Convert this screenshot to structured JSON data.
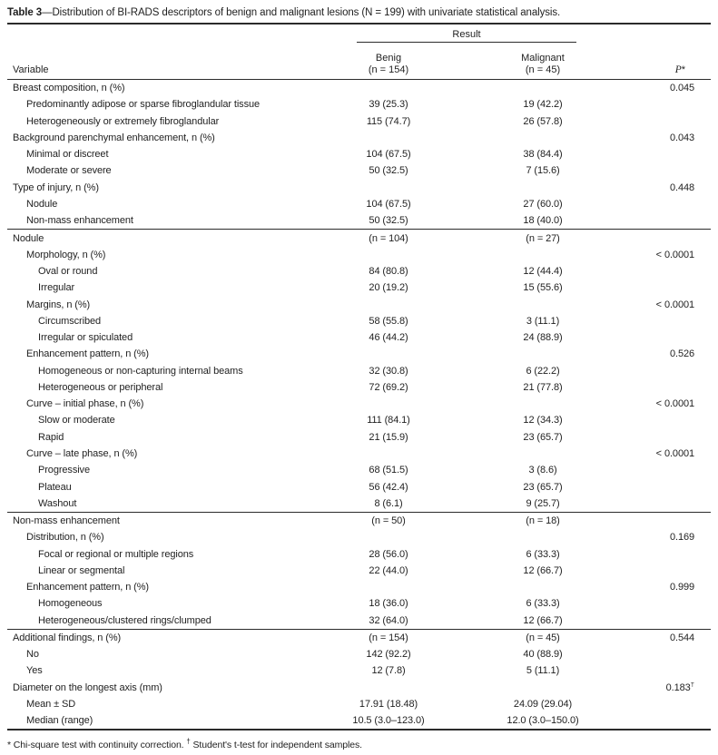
{
  "title": {
    "label": "Table 3",
    "text": "—Distribution of BI-RADS descriptors of benign and malignant lesions (N = 199) with univariate statistical analysis."
  },
  "header": {
    "result_label": "Result",
    "variable_label": "Variable",
    "benign_label": "Benig",
    "benign_n": "(n = 154)",
    "malignant_label": "Malignant",
    "malignant_n": "(n = 45)",
    "p_label": "P",
    "p_star": "*"
  },
  "rows": [
    {
      "label": "Breast composition, n (%)",
      "indent": 0,
      "benign": "",
      "malignant": "",
      "p": "0.045",
      "p_sup": "",
      "rule_above": false
    },
    {
      "label": "Predominantly adipose or sparse fibroglandular tissue",
      "indent": 1,
      "benign": "39 (25.3)",
      "malignant": "19 (42.2)",
      "p": "",
      "p_sup": "",
      "rule_above": false
    },
    {
      "label": "Heterogeneously or extremely fibroglandular",
      "indent": 1,
      "benign": "115 (74.7)",
      "malignant": "26 (57.8)",
      "p": "",
      "p_sup": "",
      "rule_above": false
    },
    {
      "label": "Background parenchymal enhancement, n (%)",
      "indent": 0,
      "benign": "",
      "malignant": "",
      "p": "0.043",
      "p_sup": "",
      "rule_above": false
    },
    {
      "label": "Minimal or discreet",
      "indent": 1,
      "benign": "104 (67.5)",
      "malignant": "38 (84.4)",
      "p": "",
      "p_sup": "",
      "rule_above": false
    },
    {
      "label": "Moderate or severe",
      "indent": 1,
      "benign": "50 (32.5)",
      "malignant": "7 (15.6)",
      "p": "",
      "p_sup": "",
      "rule_above": false
    },
    {
      "label": "Type of injury, n (%)",
      "indent": 0,
      "benign": "",
      "malignant": "",
      "p": "0.448",
      "p_sup": "",
      "rule_above": false
    },
    {
      "label": "Nodule",
      "indent": 1,
      "benign": "104 (67.5)",
      "malignant": "27 (60.0)",
      "p": "",
      "p_sup": "",
      "rule_above": false
    },
    {
      "label": "Non-mass enhancement",
      "indent": 1,
      "benign": "50 (32.5)",
      "malignant": "18 (40.0)",
      "p": "",
      "p_sup": "",
      "rule_above": false
    },
    {
      "label": "Nodule",
      "indent": 0,
      "benign": "(n = 104)",
      "malignant": "(n = 27)",
      "p": "",
      "p_sup": "",
      "rule_above": true
    },
    {
      "label": "Morphology, n (%)",
      "indent": 1,
      "benign": "",
      "malignant": "",
      "p": "< 0.0001",
      "p_sup": "",
      "rule_above": false
    },
    {
      "label": "Oval or round",
      "indent": 2,
      "benign": "84 (80.8)",
      "malignant": "12 (44.4)",
      "p": "",
      "p_sup": "",
      "rule_above": false
    },
    {
      "label": "Irregular",
      "indent": 2,
      "benign": "20 (19.2)",
      "malignant": "15 (55.6)",
      "p": "",
      "p_sup": "",
      "rule_above": false
    },
    {
      "label": "Margins, n (%)",
      "indent": 1,
      "benign": "",
      "malignant": "",
      "p": "< 0.0001",
      "p_sup": "",
      "rule_above": false
    },
    {
      "label": "Circumscribed",
      "indent": 2,
      "benign": "58 (55.8)",
      "malignant": "3 (11.1)",
      "p": "",
      "p_sup": "",
      "rule_above": false
    },
    {
      "label": "Irregular or spiculated",
      "indent": 2,
      "benign": "46 (44.2)",
      "malignant": "24 (88.9)",
      "p": "",
      "p_sup": "",
      "rule_above": false
    },
    {
      "label": "Enhancement pattern, n (%)",
      "indent": 1,
      "benign": "",
      "malignant": "",
      "p": "0.526",
      "p_sup": "",
      "rule_above": false
    },
    {
      "label": "Homogeneous or non-capturing internal beams",
      "indent": 2,
      "benign": "32 (30.8)",
      "malignant": "6 (22.2)",
      "p": "",
      "p_sup": "",
      "rule_above": false
    },
    {
      "label": "Heterogeneous or peripheral",
      "indent": 2,
      "benign": "72 (69.2)",
      "malignant": "21 (77.8)",
      "p": "",
      "p_sup": "",
      "rule_above": false
    },
    {
      "label": "Curve – initial phase, n (%)",
      "indent": 1,
      "benign": "",
      "malignant": "",
      "p": "< 0.0001",
      "p_sup": "",
      "rule_above": false
    },
    {
      "label": "Slow or moderate",
      "indent": 2,
      "benign": "111 (84.1)",
      "malignant": "12 (34.3)",
      "p": "",
      "p_sup": "",
      "rule_above": false
    },
    {
      "label": "Rapid",
      "indent": 2,
      "benign": "21 (15.9)",
      "malignant": "23 (65.7)",
      "p": "",
      "p_sup": "",
      "rule_above": false
    },
    {
      "label": "Curve – late phase, n (%)",
      "indent": 1,
      "benign": "",
      "malignant": "",
      "p": "< 0.0001",
      "p_sup": "",
      "rule_above": false
    },
    {
      "label": "Progressive",
      "indent": 2,
      "benign": "68 (51.5)",
      "malignant": "3 (8.6)",
      "p": "",
      "p_sup": "",
      "rule_above": false
    },
    {
      "label": "Plateau",
      "indent": 2,
      "benign": "56 (42.4)",
      "malignant": "23 (65.7)",
      "p": "",
      "p_sup": "",
      "rule_above": false
    },
    {
      "label": "Washout",
      "indent": 2,
      "benign": "8 (6.1)",
      "malignant": "9 (25.7)",
      "p": "",
      "p_sup": "",
      "rule_above": false
    },
    {
      "label": "Non-mass enhancement",
      "indent": 0,
      "benign": "(n = 50)",
      "malignant": "(n = 18)",
      "p": "",
      "p_sup": "",
      "rule_above": true
    },
    {
      "label": "Distribution, n (%)",
      "indent": 1,
      "benign": "",
      "malignant": "",
      "p": "0.169",
      "p_sup": "",
      "rule_above": false
    },
    {
      "label": "Focal or regional or multiple regions",
      "indent": 2,
      "benign": "28 (56.0)",
      "malignant": "6 (33.3)",
      "p": "",
      "p_sup": "",
      "rule_above": false
    },
    {
      "label": "Linear or segmental",
      "indent": 2,
      "benign": "22 (44.0)",
      "malignant": "12 (66.7)",
      "p": "",
      "p_sup": "",
      "rule_above": false
    },
    {
      "label": "Enhancement pattern, n (%)",
      "indent": 1,
      "benign": "",
      "malignant": "",
      "p": "0.999",
      "p_sup": "",
      "rule_above": false
    },
    {
      "label": "Homogeneous",
      "indent": 2,
      "benign": "18 (36.0)",
      "malignant": "6 (33.3)",
      "p": "",
      "p_sup": "",
      "rule_above": false
    },
    {
      "label": "Heterogeneous/clustered rings/clumped",
      "indent": 2,
      "benign": "32 (64.0)",
      "malignant": "12 (66.7)",
      "p": "",
      "p_sup": "",
      "rule_above": false
    },
    {
      "label": "Additional findings, n (%)",
      "indent": 0,
      "benign": "(n = 154)",
      "malignant": "(n = 45)",
      "p": "0.544",
      "p_sup": "",
      "rule_above": true
    },
    {
      "label": "No",
      "indent": 1,
      "benign": "142 (92.2)",
      "malignant": "40 (88.9)",
      "p": "",
      "p_sup": "",
      "rule_above": false
    },
    {
      "label": "Yes",
      "indent": 1,
      "benign": "12 (7.8)",
      "malignant": "5 (11.1)",
      "p": "",
      "p_sup": "",
      "rule_above": false
    },
    {
      "label": "Diameter on the longest axis (mm)",
      "indent": 0,
      "benign": "",
      "malignant": "",
      "p": "0.183",
      "p_sup": "†",
      "rule_above": false
    },
    {
      "label": "Mean ± SD",
      "indent": 1,
      "benign": "17.91 (18.48)",
      "malignant": "24.09 (29.04)",
      "p": "",
      "p_sup": "",
      "rule_above": false
    },
    {
      "label": "Median (range)",
      "indent": 1,
      "benign": "10.5 (3.0–123.0)",
      "malignant": "12.0 (3.0–150.0)",
      "p": "",
      "p_sup": "",
      "rule_above": false
    }
  ],
  "footnote": {
    "part1": "* Chi-square test with continuity correction.",
    "dagger": "†",
    "part2": "Student's t-test for independent samples."
  }
}
